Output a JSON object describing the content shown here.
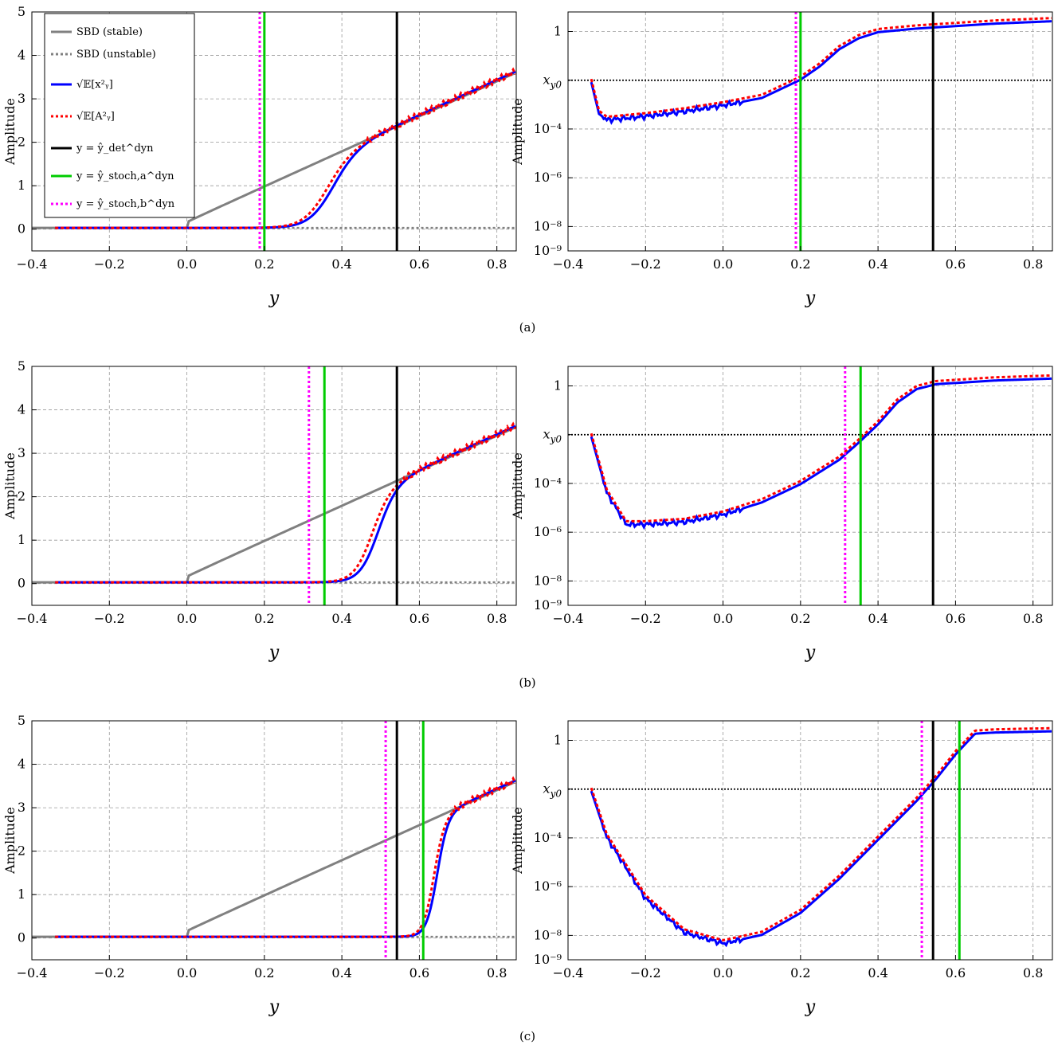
{
  "figure": {
    "subcaptions": [
      "(a)",
      "(b)",
      "(c)"
    ]
  },
  "legend": {
    "items": [
      {
        "text": "SBD (stable)",
        "color": "#808080",
        "style": "solid"
      },
      {
        "text": "SBD (unstable)",
        "color": "#808080",
        "style": "dotted"
      },
      {
        "text": "√𝔼[x²ᵧ]",
        "color": "#0000ff",
        "style": "solid"
      },
      {
        "text": "√𝔼[A²ᵧ]",
        "color": "#ff0000",
        "style": "dotted"
      },
      {
        "text": "y = ŷ_det^dyn",
        "color": "#000000",
        "style": "solid"
      },
      {
        "text": "y = ŷ_stoch,a^dyn",
        "color": "#00cc00",
        "style": "solid"
      },
      {
        "text": "y = ŷ_stoch,b^dyn",
        "color": "#ff00ff",
        "style": "dotted"
      }
    ]
  },
  "colors": {
    "gray": "#808080",
    "blue": "#0000ff",
    "red": "#ff0000",
    "black": "#000000",
    "green": "#00cc00",
    "magenta": "#ff00ff"
  },
  "chart_data": [
    {
      "panel": "(a) left",
      "type": "line",
      "ylabel": "Amplitude",
      "xlabel": "y",
      "xlim": [
        -0.4,
        0.85
      ],
      "ylim": [
        -0.5,
        5
      ],
      "xticks": [
        "−0.4",
        "−0.2",
        "0.0",
        "0.2",
        "0.4",
        "0.6",
        "0.8"
      ],
      "yticks": [
        "0",
        "1",
        "2",
        "3",
        "4",
        "5"
      ],
      "grid": true,
      "vlines": {
        "det": 0.542,
        "stoch_a": 0.2,
        "stoch_b": 0.188
      },
      "sigmoid": {
        "blue_center": 0.37,
        "red_center": 0.355,
        "width": 0.032
      }
    },
    {
      "panel": "(a) right",
      "type": "line",
      "yscale": "log",
      "ylabel": "Amplitude",
      "xlabel": "y",
      "xlim": [
        -0.4,
        0.85
      ],
      "ylim_log10": [
        -9,
        0.8
      ],
      "xticks": [
        "−0.4",
        "−0.2",
        "0.0",
        "0.2",
        "0.4",
        "0.6",
        "0.8"
      ],
      "yticks": [
        "10⁻⁹",
        "10⁻⁸",
        "10⁻⁶",
        "10⁻⁴",
        "x_y0",
        "1"
      ],
      "x_y0_log10": -2,
      "vlines": {
        "det": 0.542,
        "stoch_a": 0.2,
        "stoch_b": 0.188
      },
      "curve_log10": [
        [
          -0.34,
          -2.0
        ],
        [
          -0.32,
          -3.3
        ],
        [
          -0.3,
          -3.55
        ],
        [
          -0.2,
          -3.4
        ],
        [
          -0.1,
          -3.2
        ],
        [
          0.0,
          -2.95
        ],
        [
          0.1,
          -2.65
        ],
        [
          0.2,
          -1.9
        ],
        [
          0.25,
          -1.35
        ],
        [
          0.3,
          -0.65
        ],
        [
          0.35,
          -0.2
        ],
        [
          0.4,
          0.05
        ],
        [
          0.5,
          0.2
        ],
        [
          0.6,
          0.3
        ],
        [
          0.7,
          0.4
        ],
        [
          0.85,
          0.5
        ]
      ]
    },
    {
      "panel": "(b) left",
      "type": "line",
      "ylabel": "Amplitude",
      "xlabel": "y",
      "xlim": [
        -0.4,
        0.85
      ],
      "ylim": [
        -0.5,
        5
      ],
      "xticks": [
        "−0.4",
        "−0.2",
        "0.0",
        "0.2",
        "0.4",
        "0.6",
        "0.8"
      ],
      "yticks": [
        "0",
        "1",
        "2",
        "3",
        "4",
        "5"
      ],
      "grid": true,
      "vlines": {
        "det": 0.542,
        "stoch_a": 0.355,
        "stoch_b": 0.315
      },
      "sigmoid": {
        "blue_center": 0.49,
        "red_center": 0.475,
        "width": 0.024
      }
    },
    {
      "panel": "(b) right",
      "type": "line",
      "yscale": "log",
      "ylabel": "Amplitude",
      "xlabel": "y",
      "xlim": [
        -0.4,
        0.85
      ],
      "ylim_log10": [
        -9,
        0.8
      ],
      "xticks": [
        "−0.4",
        "−0.2",
        "0.0",
        "0.2",
        "0.4",
        "0.6",
        "0.8"
      ],
      "yticks": [
        "10⁻⁹",
        "10⁻⁸",
        "10⁻⁶",
        "10⁻⁴",
        "x_y0",
        "1"
      ],
      "x_y0_log10": -2,
      "vlines": {
        "det": 0.542,
        "stoch_a": 0.355,
        "stoch_b": 0.315
      },
      "curve_log10": [
        [
          -0.34,
          -2.0
        ],
        [
          -0.3,
          -4.3
        ],
        [
          -0.25,
          -5.6
        ],
        [
          -0.2,
          -5.6
        ],
        [
          -0.1,
          -5.5
        ],
        [
          0.0,
          -5.2
        ],
        [
          0.1,
          -4.7
        ],
        [
          0.2,
          -3.95
        ],
        [
          0.3,
          -2.95
        ],
        [
          0.35,
          -2.25
        ],
        [
          0.4,
          -1.5
        ],
        [
          0.45,
          -0.6
        ],
        [
          0.5,
          -0.05
        ],
        [
          0.55,
          0.15
        ],
        [
          0.7,
          0.3
        ],
        [
          0.85,
          0.38
        ]
      ]
    },
    {
      "panel": "(c) left",
      "type": "line",
      "ylabel": "Amplitude",
      "xlabel": "y",
      "xlim": [
        -0.4,
        0.85
      ],
      "ylim": [
        -0.5,
        5
      ],
      "xticks": [
        "−0.4",
        "−0.2",
        "0.0",
        "0.2",
        "0.4",
        "0.6",
        "0.8"
      ],
      "yticks": [
        "0",
        "1",
        "2",
        "3",
        "4",
        "5"
      ],
      "grid": true,
      "vlines": {
        "det": 0.542,
        "stoch_a": 0.61,
        "stoch_b": 0.513
      },
      "sigmoid": {
        "blue_center": 0.645,
        "red_center": 0.637,
        "width": 0.014
      }
    },
    {
      "panel": "(c) right",
      "type": "line",
      "yscale": "log",
      "ylabel": "Amplitude",
      "xlabel": "y",
      "xlim": [
        -0.4,
        0.85
      ],
      "ylim_log10": [
        -9,
        0.8
      ],
      "xticks": [
        "−0.4",
        "−0.2",
        "0.0",
        "0.2",
        "0.4",
        "0.6",
        "0.8"
      ],
      "yticks": [
        "10⁻⁹",
        "10⁻⁸",
        "10⁻⁶",
        "10⁻⁴",
        "x_y0",
        "1"
      ],
      "x_y0_log10": -2,
      "vlines": {
        "det": 0.542,
        "stoch_a": 0.61,
        "stoch_b": 0.513
      },
      "curve_log10": [
        [
          -0.34,
          -2.0
        ],
        [
          -0.3,
          -3.9
        ],
        [
          -0.2,
          -6.4
        ],
        [
          -0.1,
          -7.8
        ],
        [
          0.0,
          -8.25
        ],
        [
          0.1,
          -7.9
        ],
        [
          0.2,
          -7.0
        ],
        [
          0.3,
          -5.6
        ],
        [
          0.4,
          -4.0
        ],
        [
          0.5,
          -2.4
        ],
        [
          0.55,
          -1.5
        ],
        [
          0.6,
          -0.5
        ],
        [
          0.65,
          0.35
        ],
        [
          0.7,
          0.4
        ],
        [
          0.85,
          0.45
        ]
      ]
    }
  ]
}
